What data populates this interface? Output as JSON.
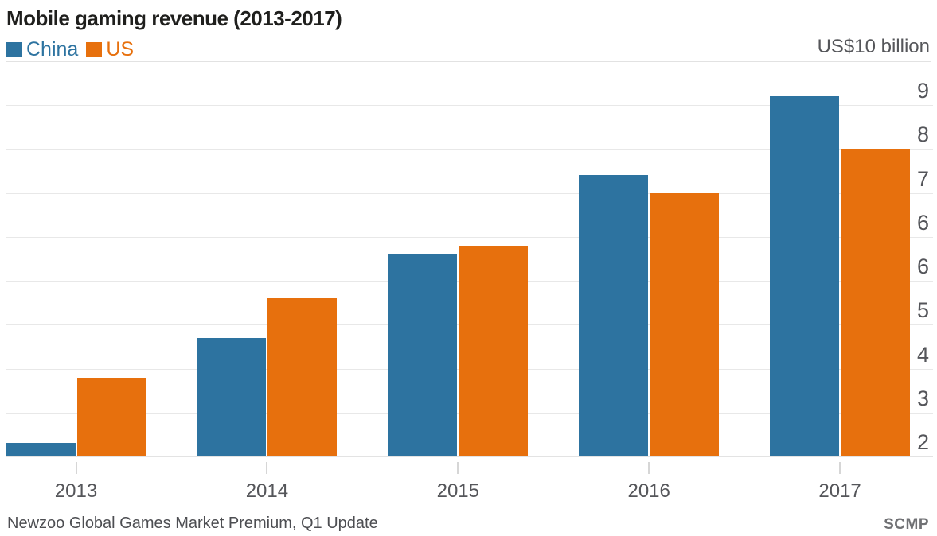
{
  "title": "Mobile gaming revenue (2013-2017)",
  "unit_label": "US$10 billion",
  "legend": [
    {
      "label": "China",
      "color": "#2d73a0"
    },
    {
      "label": "US",
      "color": "#e7700d"
    }
  ],
  "chart_data": {
    "type": "bar",
    "title": "Mobile gaming revenue (2013-2017)",
    "unit": "US$ billion",
    "categories": [
      "2013",
      "2014",
      "2015",
      "2016",
      "2017"
    ],
    "series": [
      {
        "name": "China",
        "color": "#2d73a0",
        "values": [
          2.3,
          4.7,
          6.6,
          8.4,
          10.2
        ]
      },
      {
        "name": "US",
        "color": "#e7700d",
        "values": [
          3.8,
          5.6,
          6.8,
          8.0,
          9.0
        ]
      }
    ],
    "y_axis": {
      "side": "right",
      "baseline_value": 2,
      "implied_top_value": 10,
      "tick_labels_top_to_bottom": [
        "9",
        "8",
        "7",
        "6",
        "6",
        "5",
        "4",
        "3",
        "2"
      ]
    },
    "grid": true,
    "legend_position": "top-left"
  },
  "footer": {
    "source": "Newzoo Global Games Market Premium, Q1 Update",
    "credit": "SCMP"
  }
}
